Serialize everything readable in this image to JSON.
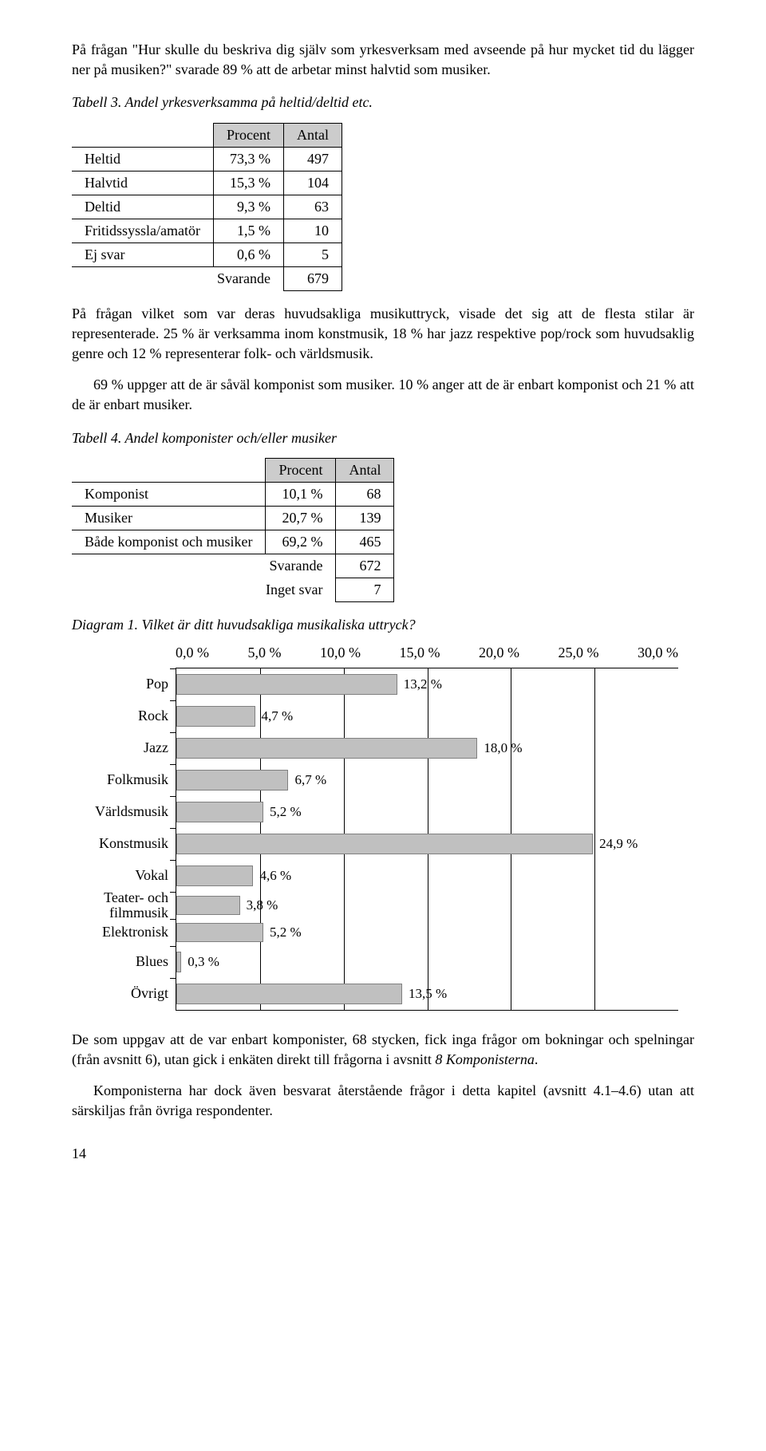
{
  "para1": "På frågan \"Hur skulle du beskriva dig själv som yrkesverksam med avseende på hur mycket tid du lägger ner på musiken?\" svarade 89 % att de arbetar minst halvtid som musiker.",
  "caption1": "Tabell 3. Andel yrkesverksamma på heltid/deltid etc.",
  "table1": {
    "headers": [
      "Procent",
      "Antal"
    ],
    "rows": [
      [
        "Heltid",
        "73,3 %",
        "497"
      ],
      [
        "Halvtid",
        "15,3 %",
        "104"
      ],
      [
        "Deltid",
        "9,3 %",
        "63"
      ],
      [
        "Fritidssyssla/amatör",
        "1,5 %",
        "10"
      ],
      [
        "Ej svar",
        "0,6 %",
        "5"
      ]
    ],
    "summary": [
      "Svarande",
      "679"
    ]
  },
  "para2": "På frågan vilket som var deras huvudsakliga musikuttryck, visade det sig att de flesta stilar är representerade. 25 % är verksamma inom konstmusik, 18 % har jazz respektive pop/rock som huvudsaklig genre och 12 % representerar folk- och världsmusik.",
  "para3": "69 % uppger att de är såväl komponist som musiker. 10 % anger att de är enbart komponist och 21 % att de är enbart musiker.",
  "caption2": "Tabell 4. Andel komponister och/eller musiker",
  "table2": {
    "headers": [
      "Procent",
      "Antal"
    ],
    "rows": [
      [
        "Komponist",
        "10,1 %",
        "68"
      ],
      [
        "Musiker",
        "20,7 %",
        "139"
      ],
      [
        "Både komponist och musiker",
        "69,2 %",
        "465"
      ]
    ],
    "summary": [
      [
        "Svarande",
        "672"
      ],
      [
        "Inget svar",
        "7"
      ]
    ]
  },
  "caption3": "Diagram 1. Vilket är ditt huvudsakliga musikaliska uttryck?",
  "chart": {
    "type": "bar",
    "xmax": 30,
    "ticks": [
      "0,0 %",
      "5,0 %",
      "10,0 %",
      "15,0 %",
      "20,0 %",
      "25,0 %",
      "30,0 %"
    ],
    "bar_color": "#c0c0c0",
    "bar_border": "#808080",
    "grid_color": "#000000",
    "categories": [
      {
        "label": "Pop",
        "value": 13.2,
        "display": "13,2 %"
      },
      {
        "label": "Rock",
        "value": 4.7,
        "display": "4,7 %"
      },
      {
        "label": "Jazz",
        "value": 18.0,
        "display": "18,0 %"
      },
      {
        "label": "Folkmusik",
        "value": 6.7,
        "display": "6,7 %"
      },
      {
        "label": "Världsmusik",
        "value": 5.2,
        "display": "5,2 %"
      },
      {
        "label": "Konstmusik",
        "value": 24.9,
        "display": "24,9 %"
      },
      {
        "label": "Vokal",
        "value": 4.6,
        "display": "4,6 %"
      },
      {
        "label": "Teater- och\nfilmmusik",
        "value": 3.8,
        "display": "3,8 %",
        "tight": true
      },
      {
        "label": "Elektronisk",
        "value": 5.2,
        "display": "5,2 %",
        "tight": true
      },
      {
        "label": "Blues",
        "value": 0.3,
        "display": "0,3 %"
      },
      {
        "label": "Övrigt",
        "value": 13.5,
        "display": "13,5 %"
      }
    ]
  },
  "para4": "De som uppgav att de var enbart komponister, 68 stycken, fick inga frågor om bokningar och spelningar (från avsnitt 6), utan gick i enkäten direkt till frågorna i avsnitt ",
  "para4_em": "8 Komponisterna",
  "para4_end": ".",
  "para5": "Komponisterna har dock även besvarat återstående frågor i detta kapitel (avsnitt 4.1–4.6) utan att särskiljas från övriga respondenter.",
  "pagenum": "14"
}
